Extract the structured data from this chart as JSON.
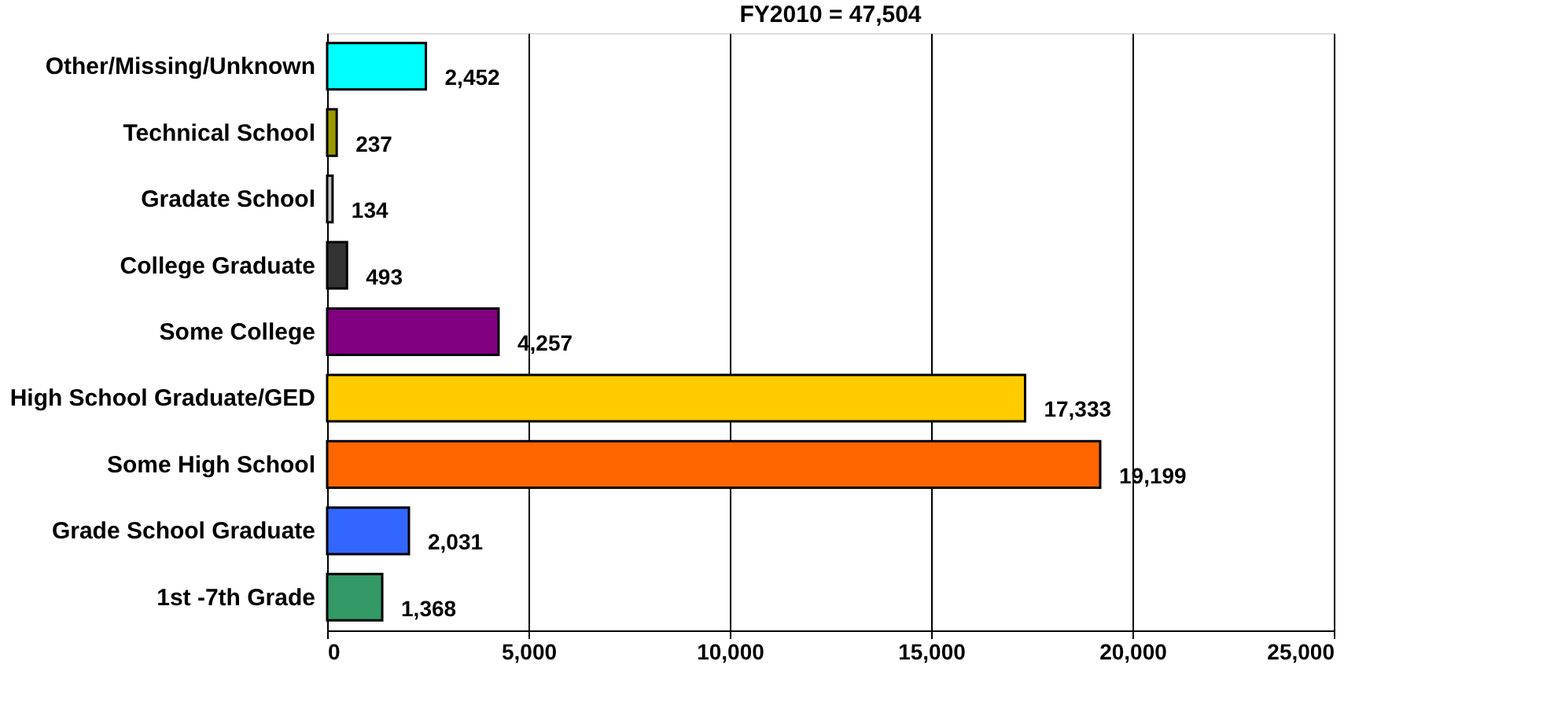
{
  "chart_data": {
    "type": "bar",
    "orientation": "horizontal",
    "title": "FY2010 = 47,504",
    "categories": [
      "Other/Missing/Unknown",
      "Technical School",
      "Gradate School",
      "College Graduate",
      "Some College",
      "High School Graduate/GED",
      "Some High School",
      "Grade School Graduate",
      "1st -7th Grade"
    ],
    "values": [
      2452,
      237,
      134,
      493,
      4257,
      17333,
      19199,
      2031,
      1368
    ],
    "colors": [
      "#00ffff",
      "#999900",
      "#c0c0c0",
      "#333333",
      "#800080",
      "#ffcc00",
      "#ff6600",
      "#3366ff",
      "#339966"
    ],
    "xlim": [
      0,
      25000
    ],
    "xticks": [
      {
        "value": 0,
        "label": "0"
      },
      {
        "value": 5000,
        "label": "5,000"
      },
      {
        "value": 10000,
        "label": "10,000"
      },
      {
        "value": 15000,
        "label": "15,000"
      },
      {
        "value": 20000,
        "label": "20,000"
      },
      {
        "value": 25000,
        "label": "25,000"
      }
    ],
    "value_labels": [
      "2,452",
      "237",
      "134",
      "493",
      "4,257",
      "17,333",
      "19,199",
      "2,031",
      "1,368"
    ],
    "grid": "x",
    "legend": false
  }
}
